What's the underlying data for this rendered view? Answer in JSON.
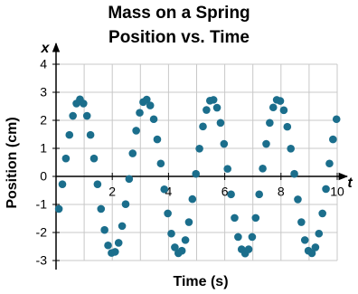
{
  "chart_data": {
    "type": "scatter",
    "title": "Mass on a Spring",
    "subtitle": "Position vs. Time",
    "x_label": "Time (s)",
    "y_label": "Position (cm)",
    "x_axis_symbol": "t",
    "y_axis_symbol": "x",
    "color": "#1b6e8c",
    "grid": true,
    "xlim": [
      0,
      10
    ],
    "ylim": [
      -3,
      4
    ],
    "xticks": [
      2,
      4,
      6,
      8,
      10
    ],
    "xgrid": [
      1,
      2,
      3,
      4,
      5,
      6,
      7,
      8,
      9,
      10
    ],
    "yticks": [
      -3,
      -2,
      -1,
      0,
      1,
      2,
      3,
      4
    ],
    "x": [
      0.1,
      0.225,
      0.35,
      0.475,
      0.6,
      0.725,
      0.85,
      0.975,
      1.1,
      1.225,
      1.35,
      1.475,
      1.6,
      1.725,
      1.85,
      1.975,
      2.1,
      2.225,
      2.35,
      2.475,
      2.6,
      2.725,
      2.85,
      2.975,
      3.1,
      3.225,
      3.35,
      3.475,
      3.6,
      3.725,
      3.85,
      3.975,
      4.1,
      4.225,
      4.35,
      4.475,
      4.6,
      4.725,
      4.85,
      4.975,
      5.1,
      5.225,
      5.35,
      5.475,
      5.6,
      5.725,
      5.85,
      5.975,
      6.1,
      6.225,
      6.35,
      6.475,
      6.6,
      6.725,
      6.85,
      6.975,
      7.1,
      7.225,
      7.35,
      7.475,
      7.6,
      7.725,
      7.85,
      7.975,
      8.1,
      8.225,
      8.35,
      8.475,
      8.6,
      8.725,
      8.85,
      8.975,
      9.1,
      9.225,
      9.35,
      9.475,
      9.6,
      9.725,
      9.85,
      9.975
    ],
    "values": [
      -1.16,
      -0.28,
      0.64,
      1.48,
      2.16,
      2.6,
      2.75,
      2.6,
      2.16,
      1.48,
      0.64,
      -0.28,
      -1.16,
      -1.91,
      -2.46,
      -2.73,
      -2.69,
      -2.37,
      -1.77,
      -0.99,
      -0.09,
      0.82,
      1.63,
      2.27,
      2.65,
      2.74,
      2.53,
      2.04,
      1.32,
      0.46,
      -0.46,
      -1.32,
      -2.04,
      -2.53,
      -2.74,
      -2.65,
      -2.27,
      -1.63,
      -0.81,
      0.09,
      0.99,
      1.78,
      2.37,
      2.7,
      2.73,
      2.45,
      1.91,
      1.16,
      0.27,
      -0.64,
      -1.48,
      -2.16,
      -2.6,
      -2.75,
      -2.6,
      -2.16,
      -1.48,
      -0.64,
      0.28,
      1.16,
      1.91,
      2.46,
      2.73,
      2.69,
      2.36,
      1.77,
      0.99,
      0.09,
      -0.82,
      -1.63,
      -2.27,
      -2.65,
      -2.74,
      -2.53,
      -2.04,
      -1.32,
      -0.45,
      0.46,
      1.32,
      2.04
    ]
  }
}
